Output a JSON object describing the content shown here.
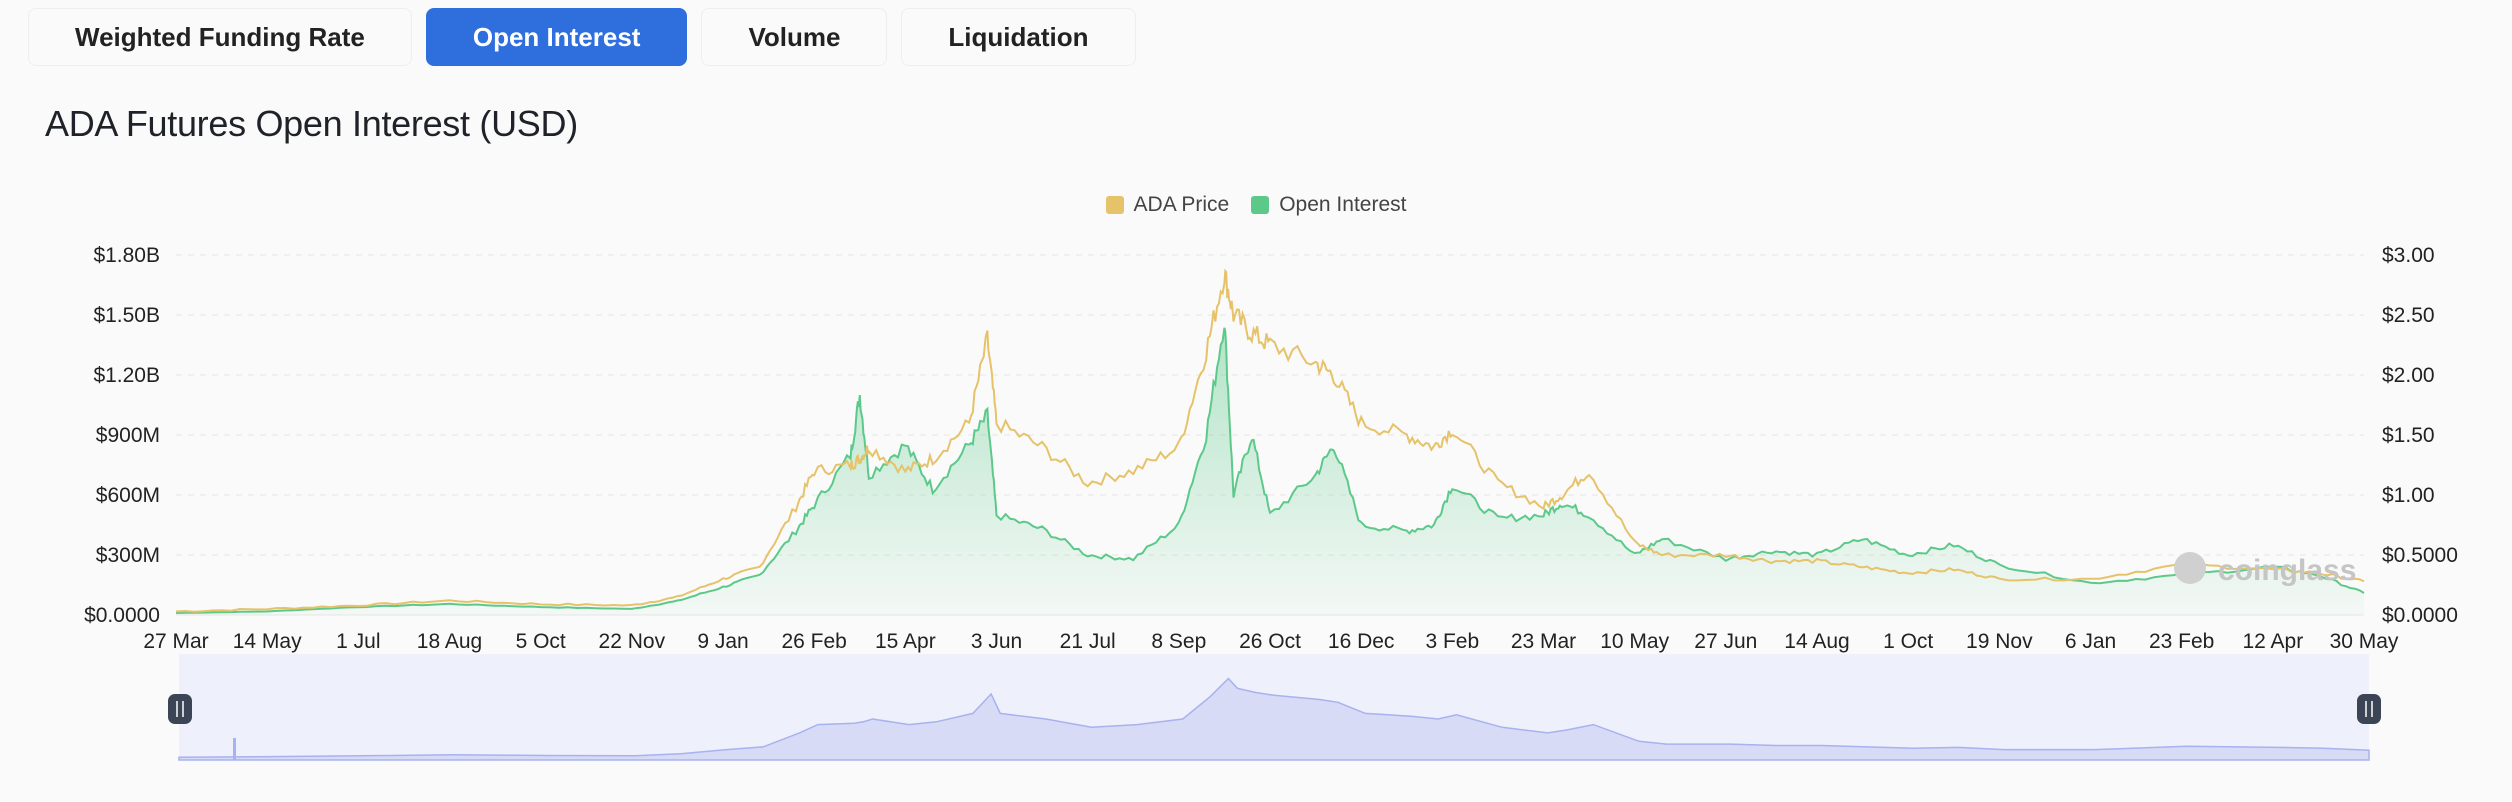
{
  "tabs": [
    {
      "label": "Weighted Funding Rate",
      "active": false
    },
    {
      "label": "Open Interest",
      "active": true
    },
    {
      "label": "Volume",
      "active": false
    },
    {
      "label": "Liquidation",
      "active": false
    }
  ],
  "title": "ADA Futures Open Interest (USD)",
  "watermark": "coinglass",
  "colors": {
    "price": "#e6c36a",
    "oi": "#5cc98a",
    "navigator": "#9ea9ea",
    "active_tab": "#2e6fdd"
  },
  "chart_data": {
    "type": "line",
    "legend": [
      {
        "name": "ADA Price",
        "color": "#e6c36a"
      },
      {
        "name": "Open Interest",
        "color": "#5cc98a"
      }
    ],
    "legend_position": "top-center",
    "grid": true,
    "x_tick_labels": [
      "27 Mar",
      "14 May",
      "1 Jul",
      "18 Aug",
      "5 Oct",
      "22 Nov",
      "9 Jan",
      "26 Feb",
      "15 Apr",
      "3 Jun",
      "21 Jul",
      "8 Sep",
      "26 Oct",
      "16 Dec",
      "3 Feb",
      "23 Mar",
      "10 May",
      "27 Jun",
      "14 Aug",
      "1 Oct",
      "19 Nov",
      "6 Jan",
      "23 Feb",
      "12 Apr",
      "30 May"
    ],
    "y_left": {
      "ticks": [
        "$0.0000",
        "$300M",
        "$600M",
        "$900M",
        "$1.20B",
        "$1.50B",
        "$1.80B"
      ],
      "range": [
        0,
        1800000000
      ]
    },
    "y_right": {
      "ticks": [
        "$0.0000",
        "$0.5000",
        "$1.00",
        "$1.50",
        "$2.00",
        "$2.50",
        "$3.00"
      ],
      "range": [
        0,
        3
      ]
    },
    "x_range": [
      0,
      24
    ],
    "series": [
      {
        "name": "Open Interest",
        "axis": "left",
        "area": true,
        "points": [
          [
            0,
            10000000
          ],
          [
            1,
            18000000
          ],
          [
            2,
            40000000
          ],
          [
            3,
            55000000
          ],
          [
            4,
            40000000
          ],
          [
            5,
            30000000
          ],
          [
            5.5,
            70000000
          ],
          [
            6,
            140000000
          ],
          [
            6.4,
            200000000
          ],
          [
            6.8,
            420000000
          ],
          [
            7,
            550000000
          ],
          [
            7.4,
            800000000
          ],
          [
            7.5,
            1100000000
          ],
          [
            7.6,
            700000000
          ],
          [
            8,
            850000000
          ],
          [
            8.3,
            630000000
          ],
          [
            8.7,
            850000000
          ],
          [
            8.9,
            1000000000
          ],
          [
            9,
            500000000
          ],
          [
            9.5,
            430000000
          ],
          [
            10,
            300000000
          ],
          [
            10.5,
            280000000
          ],
          [
            11,
            450000000
          ],
          [
            11.3,
            900000000
          ],
          [
            11.5,
            1480000000
          ],
          [
            11.6,
            600000000
          ],
          [
            11.8,
            900000000
          ],
          [
            12,
            500000000
          ],
          [
            12.5,
            700000000
          ],
          [
            12.7,
            850000000
          ],
          [
            13,
            450000000
          ],
          [
            13.5,
            420000000
          ],
          [
            13.8,
            450000000
          ],
          [
            14,
            650000000
          ],
          [
            14.5,
            480000000
          ],
          [
            15,
            500000000
          ],
          [
            15.2,
            560000000
          ],
          [
            15.5,
            500000000
          ],
          [
            16,
            300000000
          ],
          [
            16.3,
            380000000
          ],
          [
            17,
            280000000
          ],
          [
            17.5,
            320000000
          ],
          [
            18,
            300000000
          ],
          [
            18.5,
            380000000
          ],
          [
            19,
            300000000
          ],
          [
            19.5,
            350000000
          ],
          [
            20,
            250000000
          ],
          [
            21,
            160000000
          ],
          [
            22,
            200000000
          ],
          [
            23,
            240000000
          ],
          [
            23.5,
            200000000
          ],
          [
            24,
            110000000
          ]
        ]
      },
      {
        "name": "ADA Price",
        "axis": "right",
        "area": false,
        "points": [
          [
            0,
            0.03
          ],
          [
            1,
            0.05
          ],
          [
            2,
            0.08
          ],
          [
            3,
            0.12
          ],
          [
            4,
            0.09
          ],
          [
            5,
            0.08
          ],
          [
            5.5,
            0.15
          ],
          [
            6,
            0.3
          ],
          [
            6.4,
            0.4
          ],
          [
            6.8,
            0.9
          ],
          [
            7,
            1.2
          ],
          [
            7.4,
            1.25
          ],
          [
            7.5,
            1.3
          ],
          [
            7.6,
            1.4
          ],
          [
            8,
            1.2
          ],
          [
            8.3,
            1.3
          ],
          [
            8.7,
            1.6
          ],
          [
            8.9,
            2.3
          ],
          [
            9,
            1.6
          ],
          [
            9.5,
            1.4
          ],
          [
            10,
            1.1
          ],
          [
            10.5,
            1.2
          ],
          [
            11,
            1.4
          ],
          [
            11.3,
            2.2
          ],
          [
            11.5,
            2.85
          ],
          [
            11.6,
            2.5
          ],
          [
            11.8,
            2.35
          ],
          [
            12,
            2.25
          ],
          [
            12.5,
            2.1
          ],
          [
            12.7,
            2.0
          ],
          [
            13,
            1.6
          ],
          [
            13.5,
            1.5
          ],
          [
            13.8,
            1.4
          ],
          [
            14,
            1.55
          ],
          [
            14.5,
            1.1
          ],
          [
            15,
            0.9
          ],
          [
            15.2,
            1.0
          ],
          [
            15.5,
            1.2
          ],
          [
            16,
            0.6
          ],
          [
            16.3,
            0.5
          ],
          [
            17,
            0.5
          ],
          [
            17.5,
            0.45
          ],
          [
            18,
            0.45
          ],
          [
            18.5,
            0.4
          ],
          [
            19,
            0.35
          ],
          [
            19.5,
            0.38
          ],
          [
            20,
            0.3
          ],
          [
            21,
            0.3
          ],
          [
            22,
            0.42
          ],
          [
            23,
            0.38
          ],
          [
            23.5,
            0.35
          ],
          [
            24,
            0.28
          ]
        ]
      }
    ]
  }
}
